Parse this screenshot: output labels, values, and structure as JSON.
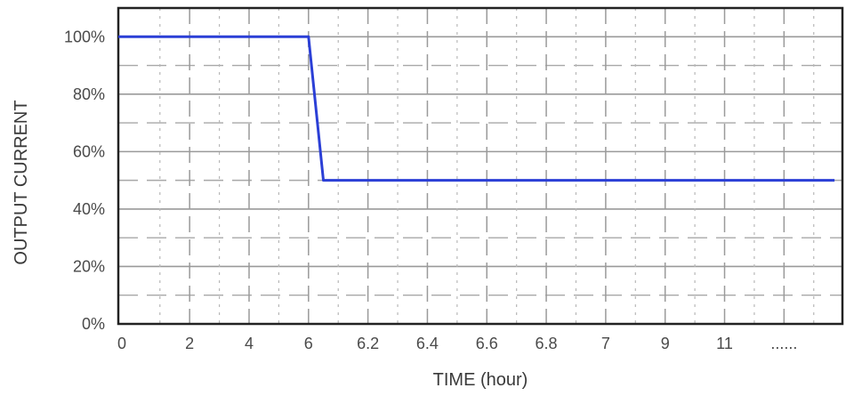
{
  "chart_data": {
    "type": "line",
    "title": "",
    "xlabel": "TIME (hour)",
    "ylabel": "OUTPUT CURRENT",
    "x_tick_labels": [
      "0",
      "2",
      "4",
      "6",
      "6.2",
      "6.4",
      "6.6",
      "6.8",
      "7",
      "9",
      "11",
      "......"
    ],
    "y_tick_labels": [
      "0%",
      "20%",
      "40%",
      "60%",
      "80%",
      "100%"
    ],
    "y_ticks": [
      0,
      20,
      40,
      60,
      80,
      100
    ],
    "ylim": [
      0,
      110
    ],
    "grid": true,
    "series": [
      {
        "x_tick_index": [
          0,
          3.0,
          3.25,
          11.85
        ],
        "y": [
          100,
          100,
          50,
          50
        ],
        "color": "#2b3fd6"
      }
    ]
  }
}
